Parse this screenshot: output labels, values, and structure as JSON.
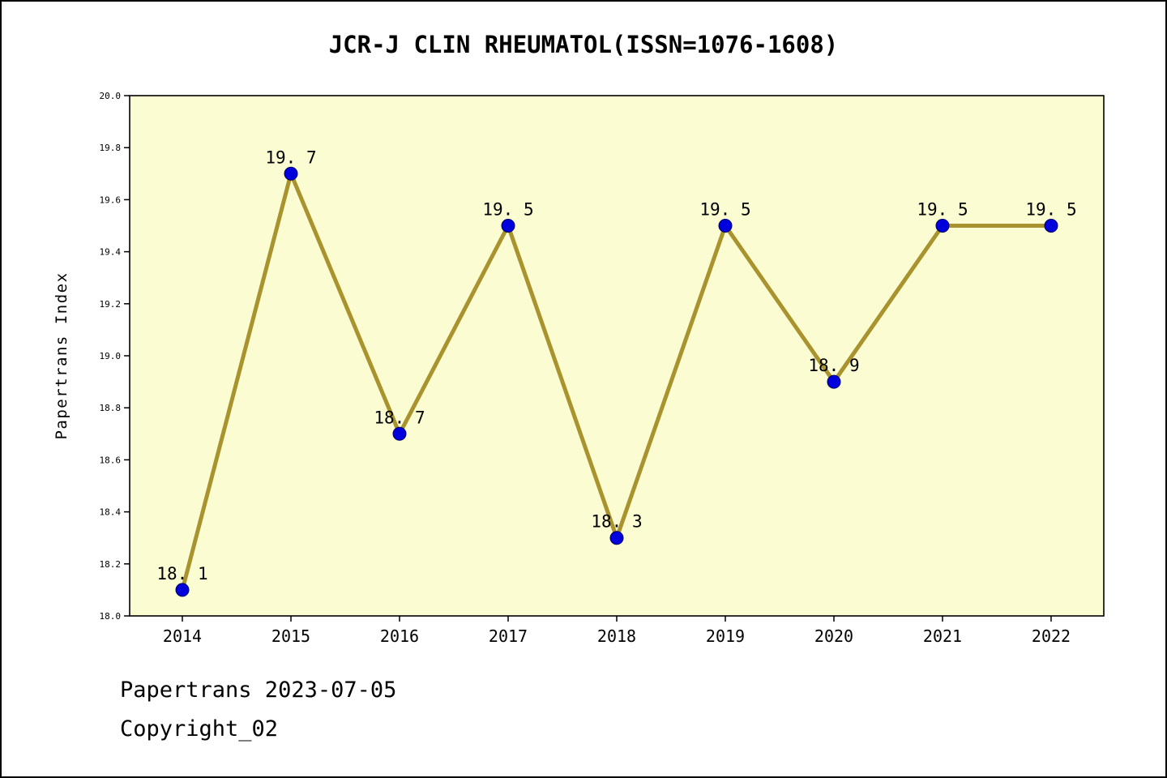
{
  "title": "JCR-J CLIN RHEUMATOL(ISSN=1076-1608)",
  "footer": {
    "line1": "Papertrans 2023-07-05",
    "line2": "Copyright_02"
  },
  "chart_data": {
    "type": "line",
    "title": "JCR-J CLIN RHEUMATOL(ISSN=1076-1608)",
    "xlabel": "",
    "ylabel": "Papertrans Index",
    "categories": [
      "2014",
      "2015",
      "2016",
      "2017",
      "2018",
      "2019",
      "2020",
      "2021",
      "2022"
    ],
    "values": [
      18.1,
      19.7,
      18.7,
      19.5,
      18.3,
      19.5,
      18.9,
      19.5,
      19.5
    ],
    "point_labels": [
      "18. 1",
      "19. 7",
      "18. 7",
      "19. 5",
      "18. 3",
      "19. 5",
      "18. 9",
      "19. 5",
      "19. 5"
    ],
    "ylim": [
      18.0,
      20.0
    ],
    "ytick_step": 0.2,
    "grid": false,
    "legend": "none",
    "colors": {
      "line": "#a8932e",
      "marker": "#0000dd",
      "marker_edge": "#000066",
      "plot_bg": "#fcfcd2",
      "axis": "#000000",
      "text": "#000000"
    }
  }
}
